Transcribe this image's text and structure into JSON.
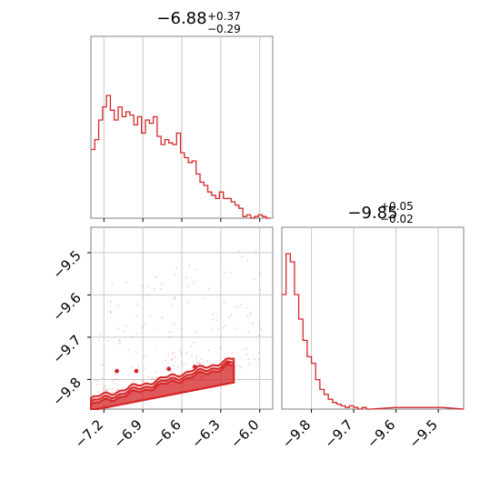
{
  "colors": {
    "series": "#d62728",
    "grid": "#c8c8c8",
    "frame": "#808080"
  },
  "chart_data": [
    {
      "type": "histogram",
      "panel": "top-left",
      "title": {
        "main": "−6.88",
        "sup": "+0.37",
        "sub": "−0.29"
      },
      "xlim": [
        -7.3,
        -5.9
      ],
      "grid": true,
      "bins": [
        [
          -7.3,
          0.42
        ],
        [
          -7.27,
          0.48
        ],
        [
          -7.24,
          0.6
        ],
        [
          -7.21,
          0.68
        ],
        [
          -7.18,
          0.75
        ],
        [
          -7.15,
          0.66
        ],
        [
          -7.12,
          0.6
        ],
        [
          -7.09,
          0.68
        ],
        [
          -7.06,
          0.62
        ],
        [
          -7.03,
          0.65
        ],
        [
          -7.0,
          0.63
        ],
        [
          -6.97,
          0.57
        ],
        [
          -6.94,
          0.62
        ],
        [
          -6.91,
          0.52
        ],
        [
          -6.88,
          0.6
        ],
        [
          -6.85,
          0.58
        ],
        [
          -6.82,
          0.62
        ],
        [
          -6.79,
          0.5
        ],
        [
          -6.76,
          0.45
        ],
        [
          -6.73,
          0.48
        ],
        [
          -6.7,
          0.46
        ],
        [
          -6.67,
          0.45
        ],
        [
          -6.64,
          0.52
        ],
        [
          -6.61,
          0.4
        ],
        [
          -6.58,
          0.37
        ],
        [
          -6.55,
          0.34
        ],
        [
          -6.52,
          0.35
        ],
        [
          -6.49,
          0.27
        ],
        [
          -6.46,
          0.22
        ],
        [
          -6.43,
          0.2
        ],
        [
          -6.4,
          0.16
        ],
        [
          -6.37,
          0.14
        ],
        [
          -6.34,
          0.12
        ],
        [
          -6.31,
          0.16
        ],
        [
          -6.28,
          0.12
        ],
        [
          -6.25,
          0.12
        ],
        [
          -6.22,
          0.1
        ],
        [
          -6.19,
          0.08
        ],
        [
          -6.16,
          0.06
        ],
        [
          -6.13,
          0.01
        ],
        [
          -6.1,
          0.02
        ],
        [
          -6.07,
          0.0
        ],
        [
          -6.04,
          0.01
        ],
        [
          -6.01,
          0.02
        ],
        [
          -5.98,
          0.01
        ],
        [
          -5.95,
          0.0
        ]
      ],
      "xticks": []
    },
    {
      "type": "histogram",
      "panel": "bottom-right",
      "title": {
        "main": "−9.85",
        "sup": "+0.05",
        "sub": "−0.02"
      },
      "xlim": [
        -9.87,
        -9.44
      ],
      "grid": true,
      "bins": [
        [
          -9.87,
          0.7
        ],
        [
          -9.86,
          0.95
        ],
        [
          -9.85,
          0.9
        ],
        [
          -9.84,
          0.7
        ],
        [
          -9.83,
          0.55
        ],
        [
          -9.82,
          0.42
        ],
        [
          -9.81,
          0.32
        ],
        [
          -9.8,
          0.28
        ],
        [
          -9.79,
          0.18
        ],
        [
          -9.78,
          0.12
        ],
        [
          -9.77,
          0.09
        ],
        [
          -9.76,
          0.06
        ],
        [
          -9.75,
          0.04
        ],
        [
          -9.74,
          0.03
        ],
        [
          -9.73,
          0.02
        ],
        [
          -9.72,
          0.01
        ],
        [
          -9.71,
          0.02
        ],
        [
          -9.7,
          0.01
        ],
        [
          -9.69,
          0.0
        ],
        [
          -9.68,
          0.01
        ],
        [
          -9.67,
          0.0
        ],
        [
          -9.6,
          0.01
        ],
        [
          -9.5,
          0.01
        ]
      ],
      "xticks": [
        "−9.8",
        "−9.7",
        "−9.6",
        "−9.5"
      ]
    },
    {
      "type": "scatter",
      "panel": "bottom-left",
      "xlim": [
        -7.3,
        -5.9
      ],
      "ylim": [
        -9.87,
        -9.44
      ],
      "grid": true,
      "xticks": [
        "−7.2",
        "−6.9",
        "−6.6",
        "−6.3",
        "−6.0"
      ],
      "yticks": [
        "−9.5",
        "−9.6",
        "−9.7",
        "−9.8"
      ]
    }
  ]
}
